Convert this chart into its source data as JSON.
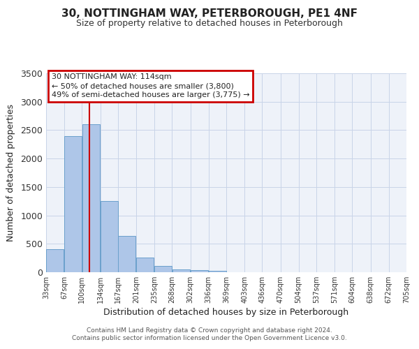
{
  "title": "30, NOTTINGHAM WAY, PETERBOROUGH, PE1 4NF",
  "subtitle": "Size of property relative to detached houses in Peterborough",
  "xlabel": "Distribution of detached houses by size in Peterborough",
  "ylabel": "Number of detached properties",
  "bar_left_edges": [
    33,
    67,
    100,
    134,
    167,
    201,
    235,
    268,
    302,
    336,
    369,
    403,
    436,
    470,
    504,
    537,
    571,
    604,
    638,
    672
  ],
  "bar_heights": [
    400,
    2400,
    2600,
    1250,
    640,
    260,
    110,
    55,
    40,
    25,
    0,
    0,
    0,
    0,
    0,
    0,
    0,
    0,
    0,
    0
  ],
  "bin_width": 33,
  "bar_color": "#aec6e8",
  "bar_edge_color": "#6aa0cc",
  "vline_x": 114,
  "vline_color": "#cc0000",
  "annotation_box_color": "#cc0000",
  "annotation_title": "30 NOTTINGHAM WAY: 114sqm",
  "annotation_line1": "← 50% of detached houses are smaller (3,800)",
  "annotation_line2": "49% of semi-detached houses are larger (3,775) →",
  "xlim_left": 33,
  "xlim_right": 705,
  "ylim_top": 3500,
  "yticks": [
    0,
    500,
    1000,
    1500,
    2000,
    2500,
    3000,
    3500
  ],
  "tick_labels": [
    "33sqm",
    "67sqm",
    "100sqm",
    "134sqm",
    "167sqm",
    "201sqm",
    "235sqm",
    "268sqm",
    "302sqm",
    "336sqm",
    "369sqm",
    "403sqm",
    "436sqm",
    "470sqm",
    "504sqm",
    "537sqm",
    "571sqm",
    "604sqm",
    "638sqm",
    "672sqm",
    "705sqm"
  ],
  "tick_positions": [
    33,
    67,
    100,
    134,
    167,
    201,
    235,
    268,
    302,
    336,
    369,
    403,
    436,
    470,
    504,
    537,
    571,
    604,
    638,
    672,
    705
  ],
  "footer_line1": "Contains HM Land Registry data © Crown copyright and database right 2024.",
  "footer_line2": "Contains public sector information licensed under the Open Government Licence v3.0.",
  "background_color": "#eef2f9",
  "grid_color": "#c8d4e8"
}
